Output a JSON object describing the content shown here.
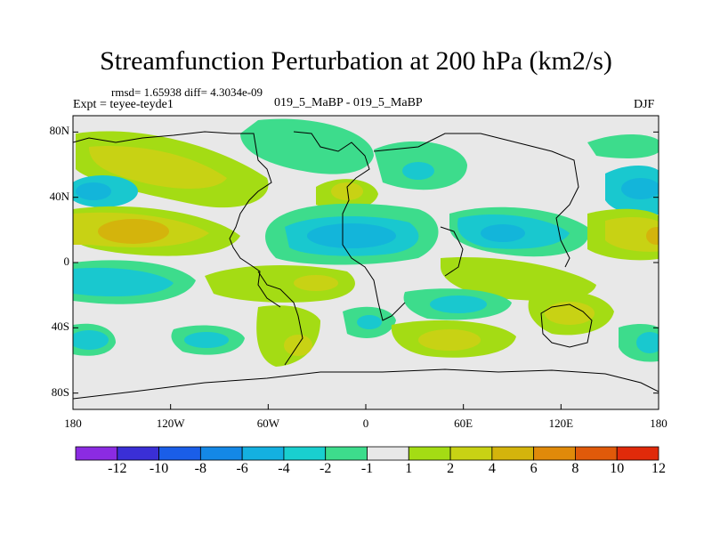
{
  "title": "Streamfunction Perturbation at 200 hPa (km2/s)",
  "stats": "rmsd= 1.65938 diff= 4.3034e-09",
  "experiment": "Expt = teyee-teyde1",
  "center_label": "019_5_MaBP - 019_5_MaBP",
  "season": "DJF",
  "colors": {
    "land": "#e8e8e8",
    "green": "#3ddc8c",
    "teal": "#19c8cf",
    "cyan": "#13b5da",
    "lime": "#a4dc14",
    "yellow": "#c8d214",
    "gold": "#d4b40c"
  },
  "chart_data": {
    "type": "contour-map",
    "variable": "Streamfunction Perturbation at 200 hPa",
    "units": "km2/s",
    "x_ticks": [
      "180",
      "120W",
      "60W",
      "0",
      "60E",
      "120E",
      "180"
    ],
    "y_ticks": [
      "80N",
      "40N",
      "0",
      "40S",
      "80S"
    ],
    "lon_range": [
      -180,
      180
    ],
    "lat_range": [
      -90,
      90
    ],
    "colorbar_levels": [
      "-12",
      "-10",
      "-8",
      "-6",
      "-4",
      "-2",
      "-1",
      "1",
      "2",
      "4",
      "6",
      "8",
      "10",
      "12"
    ],
    "colorbar_colors": [
      "#8b2be2",
      "#3a2fd6",
      "#1a5ee8",
      "#1488e6",
      "#14b0e0",
      "#19cfcf",
      "#3ddc8c",
      "#e8e8e8",
      "#a4dc14",
      "#c8d214",
      "#d4b40c",
      "#e08a0a",
      "#e05a0a",
      "#e02a0a"
    ]
  }
}
